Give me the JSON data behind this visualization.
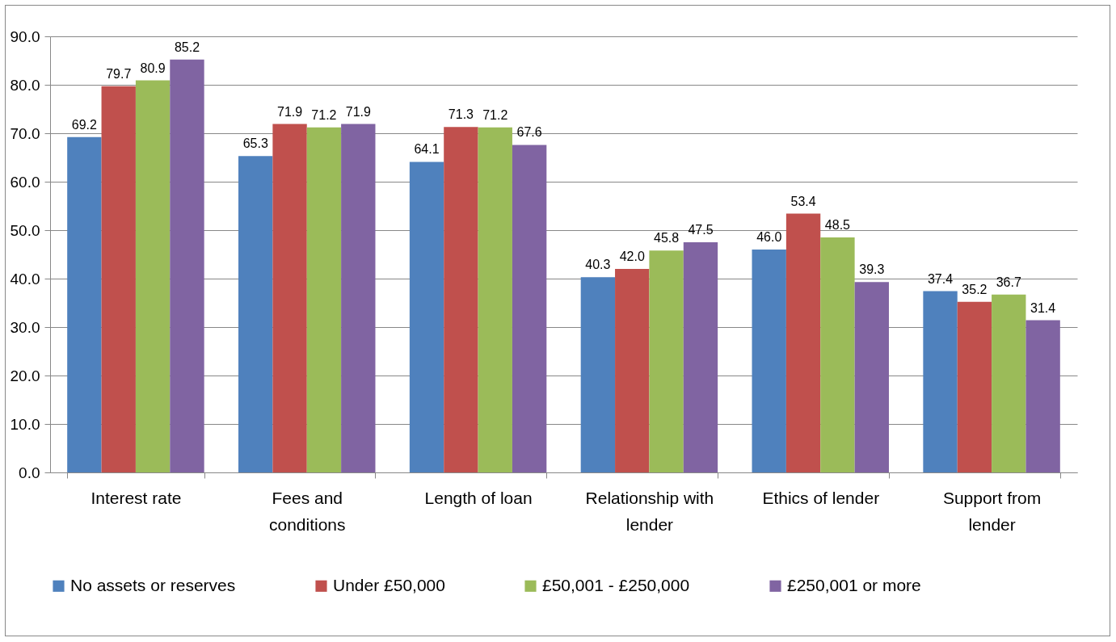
{
  "chart_data": {
    "type": "bar",
    "categories": [
      "Interest rate",
      "Fees and conditions",
      "Length of loan",
      "Relationship with lender",
      "Ethics of lender",
      "Support from lender"
    ],
    "series": [
      {
        "name": "No assets or reserves",
        "color": "#4f81bd",
        "values": [
          69.2,
          65.3,
          64.1,
          40.3,
          46.0,
          37.4
        ],
        "value_labels": [
          "69.2",
          "65.3",
          "64.1",
          "40.3",
          "46.0",
          "37.4"
        ]
      },
      {
        "name": "Under £50,000",
        "color": "#c0504d",
        "values": [
          79.7,
          71.9,
          71.3,
          42.0,
          53.4,
          35.2
        ],
        "value_labels": [
          "79.7",
          "71.9",
          "71.3",
          "42.0",
          "53.4",
          "35.2"
        ]
      },
      {
        "name": "£50,001 - £250,000",
        "color": "#9bbb59",
        "values": [
          80.9,
          71.2,
          71.2,
          45.8,
          48.5,
          36.7
        ],
        "value_labels": [
          "80.9",
          "71.2",
          "71.2",
          "45.8",
          "48.5",
          "36.7"
        ]
      },
      {
        "name": "£250,001 or more",
        "color": "#8064a2",
        "values": [
          85.2,
          71.9,
          67.6,
          47.5,
          39.3,
          31.4
        ],
        "value_labels": [
          "85.2",
          "71.9",
          "67.6",
          "47.5",
          "39.3",
          "31.4"
        ]
      }
    ],
    "ylim": [
      0,
      90
    ],
    "yticks": [
      {
        "value": 0,
        "label": "0.0"
      },
      {
        "value": 10,
        "label": "10.0"
      },
      {
        "value": 20,
        "label": "20.0"
      },
      {
        "value": 30,
        "label": "30.0"
      },
      {
        "value": 40,
        "label": "40.0"
      },
      {
        "value": 50,
        "label": "50.0"
      },
      {
        "value": 60,
        "label": "60.0"
      },
      {
        "value": 70,
        "label": "70.0"
      },
      {
        "value": 80,
        "label": "80.0"
      },
      {
        "value": 90,
        "label": "90.0"
      }
    ],
    "grid": "y",
    "legend": "bottom"
  }
}
